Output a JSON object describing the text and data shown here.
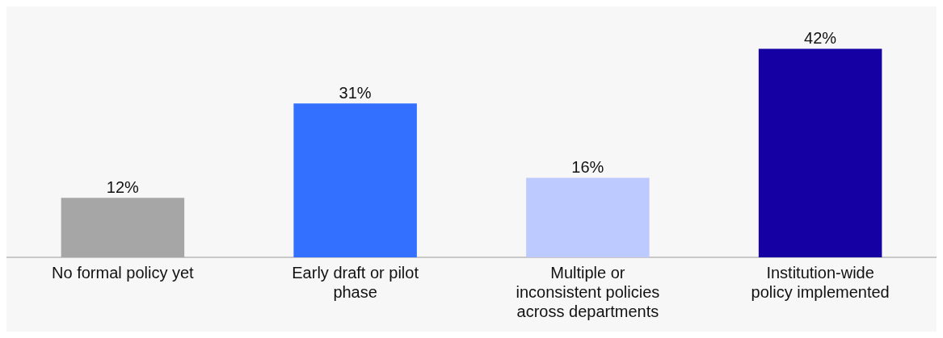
{
  "chart_data": {
    "type": "bar",
    "categories": [
      "No formal policy yet",
      "Early draft or pilot phase",
      "Multiple or inconsistent policies across departments",
      "Institution-wide policy implemented"
    ],
    "values": [
      12,
      31,
      16,
      42
    ],
    "colors": [
      "#a6a6a6",
      "#3370ff",
      "#bccaff",
      "#1400a3"
    ],
    "value_labels": [
      "12%",
      "31%",
      "16%",
      "42%"
    ],
    "grid": false,
    "legend": false
  }
}
